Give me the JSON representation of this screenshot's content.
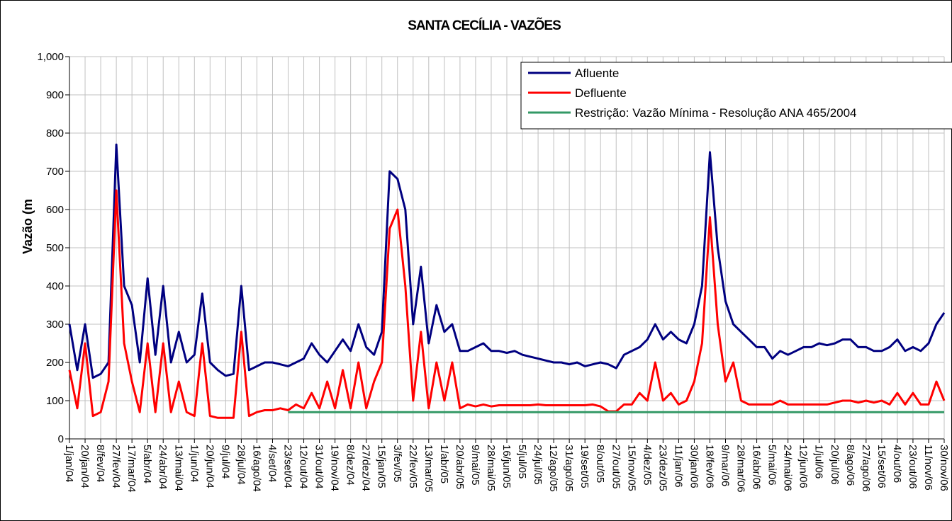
{
  "chart_data": {
    "type": "line",
    "title": "SANTA CECÍLIA - VAZÕES",
    "y_label": "Vazão (m",
    "categories": [
      "1/jan/04",
      null,
      "20/jan/04",
      null,
      "8/fev/04",
      null,
      "27/fev/04",
      null,
      "17/mar/04",
      null,
      "5/abr/04",
      null,
      "24/abr/04",
      null,
      "13/mai/04",
      null,
      "1/jun/04",
      null,
      "20/jun/04",
      null,
      "9/jul/04",
      null,
      "28/jul/04",
      null,
      "16/ago/04",
      null,
      "4/set/04",
      null,
      "23/set/04",
      null,
      "12/out/04",
      null,
      "31/out/04",
      null,
      "19/nov/04",
      null,
      "8/dez/04",
      null,
      "27/dez/04",
      null,
      "15/jan/05",
      null,
      "3/fev/05",
      null,
      "22/fev/05",
      null,
      "13/mar/05",
      null,
      "1/abr/05",
      null,
      "20/abr/05",
      null,
      "9/mai/05",
      null,
      "28/mai/05",
      null,
      "16/jun/05",
      null,
      "5/jul/05",
      null,
      "24/jul/05",
      null,
      "12/ago/05",
      null,
      "31/ago/05",
      null,
      "19/set/05",
      null,
      "8/out/05",
      null,
      "27/out/05",
      null,
      "15/nov/05",
      null,
      "4/dez/05",
      null,
      "23/dez/05",
      null,
      "11/jan/06",
      null,
      "30/jan/06",
      null,
      "18/fev/06",
      null,
      "9/mar/06",
      null,
      "28/mar/06",
      null,
      "16/abr/06",
      null,
      "5/mai/06",
      null,
      "24/mai/06",
      null,
      "12/jun/06",
      null,
      "1/jul/06",
      null,
      "20/jul/06",
      null,
      "8/ago/06",
      null,
      "27/ago/06",
      null,
      "15/set/06",
      null,
      "4/out/06",
      null,
      "23/out/06",
      null,
      "11/nov/06",
      null,
      "30/nov/06"
    ],
    "series": [
      {
        "name": "Afluente",
        "color": "#000080",
        "values": [
          300,
          180,
          300,
          160,
          170,
          200,
          770,
          400,
          350,
          200,
          420,
          220,
          400,
          200,
          280,
          200,
          220,
          380,
          200,
          180,
          165,
          170,
          400,
          180,
          190,
          200,
          200,
          195,
          190,
          200,
          210,
          250,
          220,
          200,
          230,
          260,
          230,
          300,
          240,
          220,
          280,
          700,
          680,
          600,
          300,
          450,
          250,
          350,
          280,
          300,
          230,
          230,
          240,
          250,
          230,
          230,
          225,
          230,
          220,
          215,
          210,
          205,
          200,
          200,
          195,
          200,
          190,
          195,
          200,
          195,
          185,
          220,
          230,
          240,
          260,
          300,
          260,
          280,
          260,
          250,
          300,
          400,
          750,
          500,
          360,
          300,
          280,
          260,
          240,
          240,
          210,
          230,
          220,
          230,
          240,
          240,
          250,
          245,
          250,
          260,
          260,
          240,
          240,
          230,
          230,
          240,
          260,
          230,
          240,
          230,
          250,
          300,
          330
        ]
      },
      {
        "name": "Defluente",
        "color": "#ff0000",
        "values": [
          180,
          80,
          250,
          60,
          70,
          150,
          650,
          250,
          150,
          70,
          250,
          70,
          250,
          70,
          150,
          70,
          60,
          250,
          60,
          55,
          55,
          55,
          280,
          60,
          70,
          75,
          75,
          80,
          75,
          90,
          80,
          120,
          80,
          150,
          80,
          180,
          80,
          200,
          80,
          150,
          200,
          550,
          600,
          400,
          100,
          280,
          80,
          200,
          100,
          200,
          80,
          90,
          85,
          90,
          85,
          88,
          88,
          88,
          88,
          88,
          90,
          88,
          88,
          88,
          88,
          88,
          88,
          90,
          85,
          72,
          72,
          90,
          90,
          120,
          100,
          200,
          100,
          120,
          90,
          100,
          150,
          250,
          580,
          300,
          150,
          200,
          100,
          90,
          90,
          90,
          90,
          100,
          90,
          90,
          90,
          90,
          90,
          90,
          95,
          100,
          100,
          95,
          100,
          95,
          100,
          90,
          120,
          90,
          120,
          90,
          90,
          150,
          100
        ]
      },
      {
        "name": "Restrição: Vazão Mínima - Resolução ANA 465/2004",
        "color": "#339966",
        "values": [
          null,
          null,
          null,
          null,
          null,
          null,
          null,
          null,
          null,
          null,
          null,
          null,
          null,
          null,
          null,
          null,
          null,
          null,
          null,
          null,
          null,
          null,
          null,
          null,
          null,
          null,
          null,
          null,
          70,
          70,
          70,
          70,
          70,
          70,
          70,
          70,
          70,
          70,
          70,
          70,
          70,
          70,
          70,
          70,
          70,
          70,
          70,
          70,
          70,
          70,
          70,
          70,
          70,
          70,
          70,
          70,
          70,
          70,
          70,
          70,
          70,
          70,
          70,
          70,
          70,
          70,
          70,
          70,
          70,
          70,
          70,
          70,
          70,
          70,
          70,
          70,
          70,
          70,
          70,
          70,
          70,
          70,
          70,
          70,
          70,
          70,
          70,
          70,
          70,
          70,
          70,
          70,
          70,
          70,
          70,
          70,
          70,
          70,
          70,
          70,
          70,
          70,
          70,
          70,
          70,
          70,
          70,
          70,
          70,
          70,
          70,
          70,
          70
        ]
      }
    ],
    "ylim": [
      0,
      1000
    ],
    "yticks": [
      0,
      100,
      200,
      300,
      400,
      500,
      600,
      700,
      800,
      900,
      {
        "value": 1000,
        "label": "1,000"
      }
    ],
    "grid": true,
    "legend": "top-right"
  }
}
